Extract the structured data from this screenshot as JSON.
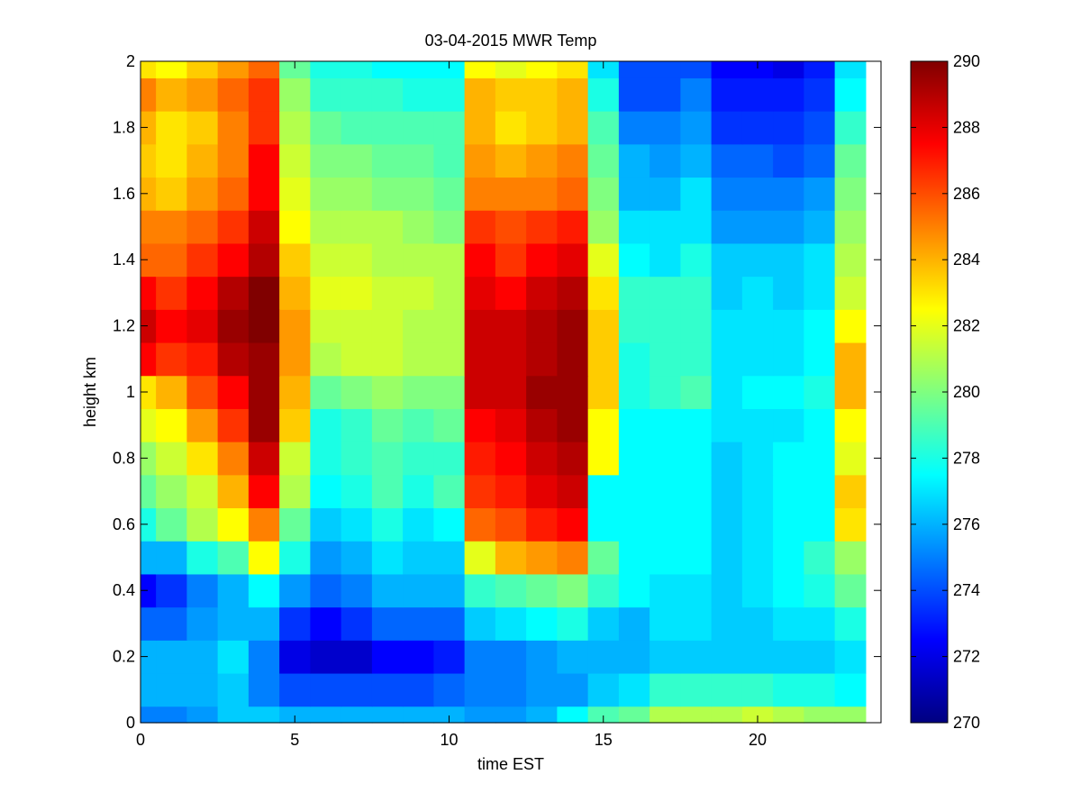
{
  "chart_data": {
    "type": "heatmap",
    "title": "03-04-2015 MWR Temp",
    "xlabel": "time EST",
    "ylabel": "height km",
    "xlim": [
      0,
      24
    ],
    "ylim": [
      0,
      2
    ],
    "xticks": [
      0,
      5,
      10,
      15,
      20
    ],
    "yticks": [
      0,
      0.2,
      0.4,
      0.6,
      0.8,
      1,
      1.2,
      1.4,
      1.6,
      1.8,
      2
    ],
    "ytick_labels": [
      "0",
      "0.2",
      "0.4",
      "0.6",
      "0.8",
      "1",
      "1.2",
      "1.4",
      "1.6",
      "1.8",
      "2"
    ],
    "x_edges": [
      0,
      0.5,
      1.5,
      2.5,
      3.5,
      4.5,
      5.5,
      6.5,
      7.5,
      8.5,
      9.5,
      10.5,
      11.5,
      12.5,
      13.5,
      14.5,
      15.5,
      16.5,
      17.5,
      18.5,
      19.5,
      20.5,
      21.5,
      22.5,
      23.5
    ],
    "y_edges": [
      0,
      0.05,
      0.15,
      0.25,
      0.35,
      0.45,
      0.55,
      0.65,
      0.75,
      0.85,
      0.95,
      1.05,
      1.15,
      1.25,
      1.35,
      1.45,
      1.55,
      1.65,
      1.75,
      1.85,
      1.95,
      2.0
    ],
    "z": [
      [
        275.0,
        275.0,
        275.5,
        276.5,
        276.5,
        276.0,
        276.0,
        276.0,
        276.0,
        276.0,
        276.0,
        275.5,
        275.5,
        276.0,
        277.5,
        279.0,
        279.5,
        281.0,
        281.0,
        281.0,
        281.5,
        281.0,
        280.5,
        280.5
      ],
      [
        276.0,
        276.0,
        276.0,
        276.5,
        275.0,
        274.0,
        274.0,
        274.0,
        274.0,
        274.0,
        274.5,
        275.0,
        275.0,
        275.5,
        275.5,
        276.5,
        277.0,
        278.5,
        278.5,
        278.5,
        278.5,
        278.0,
        278.0,
        277.5
      ],
      [
        276.0,
        276.0,
        276.0,
        277.0,
        275.0,
        272.0,
        271.5,
        271.5,
        272.5,
        272.5,
        273.0,
        275.0,
        275.0,
        275.5,
        276.0,
        276.0,
        276.0,
        276.5,
        276.5,
        276.5,
        276.5,
        276.5,
        276.5,
        277.0
      ],
      [
        274.5,
        274.5,
        275.5,
        276.0,
        276.0,
        273.5,
        272.5,
        273.5,
        274.5,
        274.5,
        274.5,
        276.5,
        277.0,
        277.5,
        278.0,
        276.5,
        276.0,
        277.0,
        277.0,
        276.5,
        276.5,
        277.0,
        277.0,
        278.0
      ],
      [
        272.5,
        273.5,
        275.0,
        276.0,
        277.5,
        275.5,
        274.5,
        275.0,
        276.0,
        276.0,
        276.0,
        278.5,
        279.0,
        279.5,
        280.0,
        278.5,
        277.5,
        277.0,
        277.0,
        276.5,
        277.0,
        277.5,
        278.0,
        279.5
      ],
      [
        276.0,
        276.0,
        278.0,
        279.0,
        282.5,
        278.0,
        275.5,
        276.0,
        277.0,
        276.5,
        276.5,
        282.0,
        284.0,
        284.5,
        285.0,
        279.5,
        277.5,
        277.5,
        277.5,
        276.5,
        277.0,
        277.5,
        278.5,
        280.5
      ],
      [
        278.0,
        279.5,
        281.0,
        282.5,
        285.0,
        279.5,
        276.5,
        277.0,
        278.0,
        277.0,
        277.5,
        285.5,
        286.0,
        287.0,
        287.5,
        277.5,
        277.5,
        277.5,
        277.5,
        276.5,
        277.0,
        277.5,
        277.5,
        283.0
      ],
      [
        279.5,
        280.5,
        281.5,
        284.0,
        287.5,
        281.0,
        277.5,
        278.0,
        279.0,
        278.0,
        279.0,
        286.5,
        287.0,
        288.0,
        288.5,
        277.5,
        277.5,
        277.5,
        277.5,
        276.5,
        277.0,
        277.5,
        277.5,
        283.5
      ],
      [
        280.5,
        281.5,
        283.0,
        285.0,
        288.5,
        281.5,
        278.0,
        278.5,
        279.0,
        278.5,
        278.5,
        287.0,
        287.5,
        288.5,
        289.0,
        282.5,
        277.5,
        277.5,
        277.5,
        276.5,
        277.0,
        277.5,
        277.5,
        282.0
      ],
      [
        282.0,
        282.5,
        284.5,
        286.5,
        289.5,
        283.5,
        278.0,
        278.5,
        279.5,
        279.0,
        279.5,
        287.5,
        288.0,
        289.0,
        289.5,
        282.5,
        277.5,
        277.5,
        277.5,
        277.0,
        277.0,
        277.0,
        277.5,
        282.5
      ],
      [
        283.0,
        284.0,
        286.0,
        287.5,
        289.5,
        284.0,
        279.5,
        280.0,
        280.5,
        280.0,
        280.0,
        288.5,
        288.5,
        289.5,
        289.5,
        283.5,
        278.0,
        278.5,
        279.0,
        277.0,
        277.5,
        277.5,
        278.0,
        284.0
      ],
      [
        287.5,
        286.5,
        287.0,
        289.0,
        289.5,
        284.5,
        281.0,
        281.5,
        281.5,
        281.0,
        281.0,
        288.5,
        288.5,
        289.0,
        289.5,
        283.5,
        278.0,
        278.5,
        278.5,
        277.0,
        277.0,
        277.0,
        277.5,
        284.0
      ],
      [
        288.5,
        287.5,
        288.0,
        289.5,
        290.0,
        284.5,
        281.5,
        281.5,
        281.5,
        281.0,
        281.0,
        288.5,
        288.5,
        289.0,
        289.5,
        283.5,
        278.5,
        278.5,
        278.5,
        277.0,
        277.0,
        277.0,
        277.5,
        282.5
      ],
      [
        287.5,
        286.5,
        287.5,
        289.0,
        290.0,
        284.0,
        282.0,
        282.0,
        281.5,
        281.5,
        281.0,
        288.0,
        287.5,
        288.5,
        289.0,
        283.0,
        278.5,
        278.5,
        278.5,
        276.5,
        277.0,
        276.5,
        277.0,
        281.5
      ],
      [
        285.5,
        285.5,
        286.5,
        287.5,
        289.0,
        283.5,
        281.5,
        281.5,
        281.0,
        281.0,
        281.0,
        287.5,
        286.5,
        287.5,
        288.0,
        282.0,
        277.5,
        277.0,
        278.0,
        276.5,
        276.5,
        276.5,
        277.0,
        281.0
      ],
      [
        285.0,
        285.0,
        285.5,
        286.5,
        288.5,
        282.5,
        281.0,
        281.0,
        281.0,
        280.5,
        280.0,
        286.5,
        286.0,
        286.5,
        287.0,
        280.5,
        277.0,
        277.0,
        277.0,
        275.5,
        275.5,
        275.5,
        276.0,
        280.5
      ],
      [
        284.0,
        283.5,
        284.5,
        285.5,
        287.5,
        282.0,
        280.5,
        280.5,
        280.0,
        280.0,
        279.5,
        285.0,
        285.0,
        285.0,
        285.5,
        280.0,
        276.0,
        276.0,
        277.0,
        275.0,
        275.0,
        275.0,
        275.5,
        280.0
      ],
      [
        283.5,
        283.0,
        284.0,
        285.0,
        287.5,
        281.5,
        280.0,
        280.0,
        279.5,
        279.5,
        279.0,
        284.5,
        284.0,
        284.5,
        285.0,
        279.5,
        276.0,
        275.5,
        276.0,
        274.5,
        274.5,
        274.0,
        274.5,
        279.5
      ],
      [
        284.0,
        283.0,
        283.5,
        285.0,
        286.5,
        281.0,
        279.5,
        279.0,
        279.0,
        279.0,
        279.0,
        284.0,
        283.0,
        283.5,
        284.0,
        279.0,
        275.0,
        275.0,
        275.5,
        273.5,
        273.5,
        273.5,
        274.0,
        278.5
      ],
      [
        285.0,
        284.0,
        284.5,
        285.5,
        286.5,
        280.5,
        278.5,
        278.5,
        278.5,
        278.0,
        278.0,
        284.0,
        283.5,
        283.5,
        284.0,
        278.0,
        274.0,
        274.0,
        275.0,
        273.0,
        273.0,
        273.0,
        273.5,
        277.5
      ],
      [
        283.0,
        282.5,
        283.5,
        284.5,
        285.5,
        279.5,
        278.0,
        278.0,
        277.5,
        277.5,
        277.5,
        282.5,
        282.0,
        282.5,
        283.0,
        277.0,
        274.0,
        274.0,
        274.0,
        272.5,
        272.5,
        272.0,
        273.0,
        277.0
      ]
    ],
    "colorbar": {
      "min": 270,
      "max": 290,
      "ticks": [
        270,
        272,
        274,
        276,
        278,
        280,
        282,
        284,
        286,
        288,
        290
      ],
      "colormap": "jet"
    },
    "grid": false,
    "legend": "none"
  }
}
